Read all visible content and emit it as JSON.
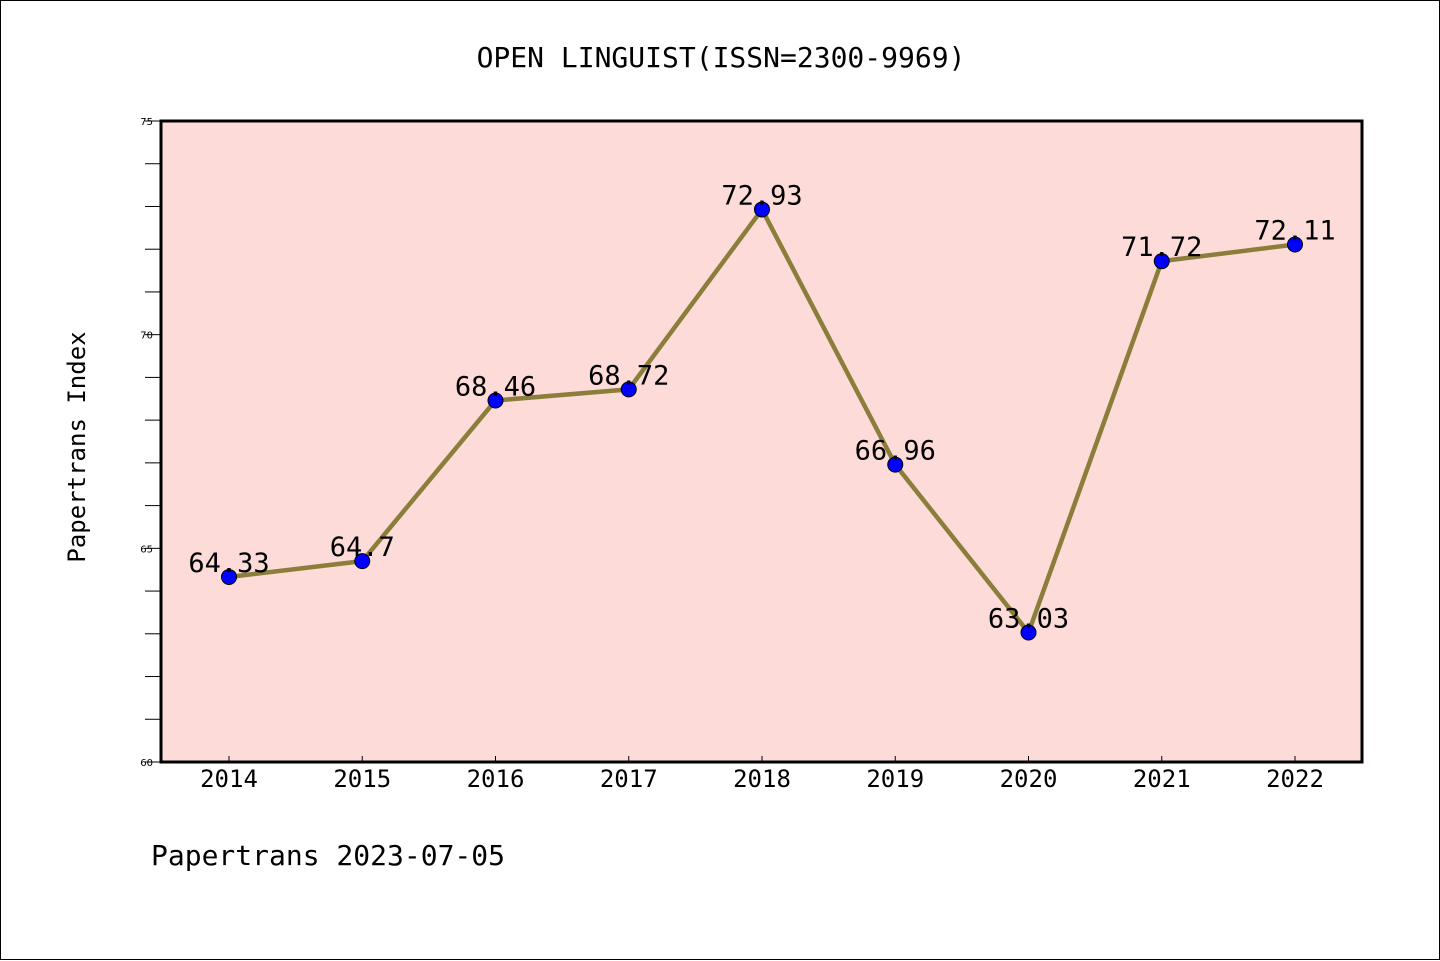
{
  "chart_data": {
    "type": "line",
    "title": "OPEN LINGUIST(ISSN=2300-9969)",
    "xlabel": "",
    "ylabel": "Papertrans Index",
    "footer": "Papertrans 2023-07-05",
    "categories": [
      "2014",
      "2015",
      "2016",
      "2017",
      "2018",
      "2019",
      "2020",
      "2021",
      "2022"
    ],
    "series": [
      {
        "values": [
          64.33,
          64.7,
          68.46,
          68.72,
          72.93,
          66.96,
          63.03,
          71.72,
          72.11
        ],
        "labels": [
          "64.33",
          "64.7",
          "68.46",
          "68.72",
          "72.93",
          "66.96",
          "63.03",
          "71.72",
          "72.11"
        ],
        "line_color": "#8b7d3a",
        "marker_color": "#0000ff"
      }
    ],
    "ylim": [
      60,
      75
    ],
    "yticks": [
      "60",
      "65",
      "70",
      "75"
    ],
    "plot_background": "#fddbd8",
    "grid": false,
    "legend": "none"
  }
}
